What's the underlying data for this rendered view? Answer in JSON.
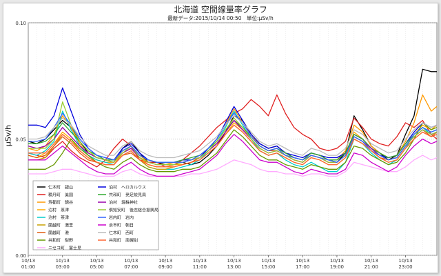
{
  "chart_data": {
    "type": "line",
    "title": "北海道 空間線量率グラフ",
    "subtitle": "最新データ:2015/10/14 00:50　単位:μSv/h",
    "ylabel": "μSv/h",
    "xlabel": "",
    "ylim": [
      0.0,
      0.1
    ],
    "y_ticks": [
      "0.00",
      "0.05",
      "0.10"
    ],
    "x_ticks": [
      [
        "10/13",
        "01:00"
      ],
      [
        "10/13",
        "03:00"
      ],
      [
        "10/13",
        "05:00"
      ],
      [
        "10/13",
        "07:00"
      ],
      [
        "10/13",
        "09:00"
      ],
      [
        "10/13",
        "11:00"
      ],
      [
        "10/13",
        "13:00"
      ],
      [
        "10/13",
        "15:00"
      ],
      [
        "10/13",
        "17:00"
      ],
      [
        "10/13",
        "19:00"
      ],
      [
        "10/13",
        "21:00"
      ],
      [
        "10/13",
        "23:00"
      ]
    ],
    "grid": true,
    "legend_position": "bottom-left",
    "x_hours": [
      1.0,
      1.5,
      2.0,
      2.5,
      3.0,
      3.5,
      4.0,
      4.5,
      5.0,
      5.5,
      6.0,
      6.5,
      7.0,
      7.5,
      8.0,
      8.5,
      9.0,
      9.5,
      10.0,
      10.5,
      11.0,
      11.5,
      12.0,
      12.5,
      13.0,
      13.5,
      14.0,
      14.5,
      15.0,
      15.5,
      16.0,
      16.5,
      17.0,
      17.5,
      18.0,
      18.5,
      19.0,
      19.5,
      20.0,
      20.5,
      21.0,
      21.5,
      22.0,
      22.5,
      23.0,
      23.5,
      24.0,
      24.5,
      24.83
    ],
    "series": [
      {
        "name": "仁木町　銀山",
        "color": "#000000",
        "values": [
          0.049,
          0.048,
          0.05,
          0.054,
          0.058,
          0.055,
          0.049,
          0.044,
          0.042,
          0.041,
          0.04,
          0.046,
          0.049,
          0.044,
          0.04,
          0.04,
          0.039,
          0.04,
          0.04,
          0.039,
          0.04,
          0.043,
          0.047,
          0.053,
          0.06,
          0.058,
          0.052,
          0.048,
          0.046,
          0.047,
          0.044,
          0.042,
          0.041,
          0.044,
          0.043,
          0.041,
          0.04,
          0.044,
          0.06,
          0.054,
          0.047,
          0.044,
          0.041,
          0.043,
          0.052,
          0.06,
          0.08,
          0.079,
          0.079
        ]
      },
      {
        "name": "積丹町　美国",
        "color": "#e02020",
        "values": [
          0.044,
          0.043,
          0.042,
          0.046,
          0.049,
          0.045,
          0.042,
          0.04,
          0.038,
          0.041,
          0.046,
          0.05,
          0.047,
          0.041,
          0.04,
          0.04,
          0.038,
          0.039,
          0.041,
          0.044,
          0.047,
          0.051,
          0.055,
          0.058,
          0.061,
          0.063,
          0.067,
          0.064,
          0.06,
          0.069,
          0.061,
          0.055,
          0.052,
          0.05,
          0.046,
          0.045,
          0.046,
          0.049,
          0.059,
          0.055,
          0.05,
          0.048,
          0.047,
          0.051,
          0.057,
          0.055,
          0.058,
          0.052,
          0.05
        ]
      },
      {
        "name": "寿都町　錦谷",
        "color": "#ff9900",
        "values": [
          0.046,
          0.045,
          0.047,
          0.052,
          0.06,
          0.055,
          0.048,
          0.043,
          0.041,
          0.04,
          0.04,
          0.045,
          0.047,
          0.043,
          0.04,
          0.039,
          0.039,
          0.04,
          0.04,
          0.041,
          0.043,
          0.046,
          0.05,
          0.056,
          0.063,
          0.057,
          0.052,
          0.047,
          0.045,
          0.046,
          0.043,
          0.042,
          0.041,
          0.044,
          0.043,
          0.041,
          0.041,
          0.045,
          0.056,
          0.053,
          0.047,
          0.044,
          0.042,
          0.043,
          0.049,
          0.057,
          0.069,
          0.062,
          0.064
        ]
      },
      {
        "name": "泊村　茶津",
        "color": "#ffaa00",
        "values": [
          0.043,
          0.042,
          0.044,
          0.048,
          0.053,
          0.05,
          0.045,
          0.042,
          0.04,
          0.039,
          0.039,
          0.044,
          0.046,
          0.042,
          0.039,
          0.038,
          0.038,
          0.039,
          0.039,
          0.04,
          0.041,
          0.044,
          0.047,
          0.052,
          0.057,
          0.054,
          0.05,
          0.046,
          0.044,
          0.045,
          0.043,
          0.041,
          0.04,
          0.043,
          0.042,
          0.04,
          0.04,
          0.043,
          0.053,
          0.05,
          0.046,
          0.043,
          0.041,
          0.042,
          0.047,
          0.052,
          0.056,
          0.054,
          0.056
        ]
      },
      {
        "name": "泊村　茶津",
        "color": "#00cccc",
        "values": [
          0.044,
          0.043,
          0.045,
          0.049,
          0.062,
          0.054,
          0.047,
          0.043,
          0.041,
          0.04,
          0.039,
          0.043,
          0.045,
          0.041,
          0.038,
          0.037,
          0.037,
          0.037,
          0.038,
          0.039,
          0.041,
          0.045,
          0.049,
          0.055,
          0.062,
          0.056,
          0.05,
          0.045,
          0.043,
          0.044,
          0.041,
          0.039,
          0.038,
          0.04,
          0.038,
          0.036,
          0.036,
          0.04,
          0.05,
          0.048,
          0.044,
          0.041,
          0.039,
          0.041,
          0.046,
          0.052,
          0.055,
          0.052,
          0.053
        ]
      },
      {
        "name": "蘭越町　湯里",
        "color": "#c8a000",
        "values": [
          0.041,
          0.041,
          0.042,
          0.047,
          0.052,
          0.049,
          0.045,
          0.042,
          0.04,
          0.039,
          0.039,
          0.043,
          0.045,
          0.041,
          0.038,
          0.037,
          0.037,
          0.038,
          0.039,
          0.04,
          0.041,
          0.044,
          0.047,
          0.052,
          0.056,
          0.053,
          0.049,
          0.045,
          0.043,
          0.044,
          0.042,
          0.04,
          0.039,
          0.042,
          0.041,
          0.039,
          0.039,
          0.042,
          0.05,
          0.048,
          0.045,
          0.042,
          0.04,
          0.041,
          0.046,
          0.05,
          0.053,
          0.051,
          0.052
        ]
      },
      {
        "name": "蘭越町　港",
        "color": "#e05a10",
        "values": [
          0.043,
          0.042,
          0.043,
          0.047,
          0.051,
          0.048,
          0.044,
          0.041,
          0.04,
          0.039,
          0.039,
          0.043,
          0.044,
          0.041,
          0.039,
          0.038,
          0.038,
          0.038,
          0.039,
          0.04,
          0.042,
          0.045,
          0.048,
          0.053,
          0.058,
          0.055,
          0.051,
          0.047,
          0.045,
          0.045,
          0.043,
          0.041,
          0.04,
          0.043,
          0.042,
          0.04,
          0.04,
          0.043,
          0.051,
          0.049,
          0.045,
          0.042,
          0.041,
          0.042,
          0.047,
          0.051,
          0.054,
          0.051,
          0.053
        ]
      },
      {
        "name": "共和町　梨野",
        "color": "#669900",
        "values": [
          0.037,
          0.037,
          0.037,
          0.039,
          0.044,
          0.05,
          0.046,
          0.043,
          0.04,
          0.038,
          0.037,
          0.04,
          0.042,
          0.039,
          0.037,
          0.036,
          0.036,
          0.036,
          0.037,
          0.037,
          0.038,
          0.041,
          0.044,
          0.049,
          0.054,
          0.051,
          0.047,
          0.043,
          0.041,
          0.041,
          0.039,
          0.038,
          0.037,
          0.039,
          0.038,
          0.037,
          0.037,
          0.04,
          0.047,
          0.046,
          0.043,
          0.041,
          0.039,
          0.04,
          0.044,
          0.05,
          0.057,
          0.054,
          0.055
        ]
      },
      {
        "name": "ニセコ町　富士見",
        "color": "#ffaaff",
        "values": [
          0.035,
          0.035,
          0.035,
          0.036,
          0.037,
          0.037,
          0.036,
          0.035,
          0.034,
          0.034,
          0.034,
          0.036,
          0.037,
          0.035,
          0.034,
          0.034,
          0.034,
          0.034,
          0.034,
          0.035,
          0.035,
          0.036,
          0.037,
          0.039,
          0.041,
          0.04,
          0.039,
          0.037,
          0.036,
          0.036,
          0.035,
          0.035,
          0.034,
          0.035,
          0.035,
          0.034,
          0.034,
          0.036,
          0.04,
          0.039,
          0.038,
          0.037,
          0.036,
          0.036,
          0.038,
          0.041,
          0.043,
          0.041,
          0.042
        ]
      },
      {
        "name": "泊村　ヘロカルウス",
        "color": "#0000dd",
        "values": [
          0.056,
          0.056,
          0.055,
          0.06,
          0.072,
          0.062,
          0.052,
          0.046,
          0.043,
          0.042,
          0.041,
          0.046,
          0.048,
          0.044,
          0.041,
          0.04,
          0.04,
          0.04,
          0.041,
          0.041,
          0.042,
          0.046,
          0.05,
          0.057,
          0.064,
          0.058,
          0.052,
          0.048,
          0.046,
          0.047,
          0.044,
          0.043,
          0.042,
          0.044,
          0.043,
          0.042,
          0.042,
          0.044,
          0.052,
          0.05,
          0.046,
          0.043,
          0.042,
          0.043,
          0.048,
          0.053,
          0.057,
          0.055,
          0.056
        ]
      },
      {
        "name": "共和町　発足蛟見局",
        "color": "#33aa33",
        "values": [
          0.048,
          0.048,
          0.049,
          0.052,
          0.057,
          0.053,
          0.049,
          0.045,
          0.043,
          0.041,
          0.041,
          0.045,
          0.047,
          0.043,
          0.041,
          0.04,
          0.04,
          0.04,
          0.041,
          0.042,
          0.043,
          0.046,
          0.049,
          0.054,
          0.058,
          0.055,
          0.051,
          0.047,
          0.045,
          0.046,
          0.044,
          0.042,
          0.041,
          0.044,
          0.043,
          0.041,
          0.041,
          0.044,
          0.052,
          0.05,
          0.046,
          0.044,
          0.042,
          0.043,
          0.048,
          0.052,
          0.055,
          0.053,
          0.054
        ]
      },
      {
        "name": "泊村　堀株神社",
        "color": "#9900aa",
        "values": [
          0.047,
          0.046,
          0.047,
          0.05,
          0.055,
          0.051,
          0.047,
          0.044,
          0.042,
          0.041,
          0.04,
          0.044,
          0.046,
          0.042,
          0.04,
          0.039,
          0.039,
          0.039,
          0.04,
          0.041,
          0.042,
          0.045,
          0.048,
          0.053,
          0.058,
          0.054,
          0.05,
          0.046,
          0.044,
          0.045,
          0.043,
          0.041,
          0.04,
          0.043,
          0.042,
          0.04,
          0.04,
          0.043,
          0.051,
          0.049,
          0.046,
          0.043,
          0.041,
          0.042,
          0.047,
          0.051,
          0.054,
          0.052,
          0.053
        ]
      },
      {
        "name": "俱知安町　後志総合振興局",
        "color": "#99cc33",
        "values": [
          0.046,
          0.046,
          0.046,
          0.05,
          0.066,
          0.056,
          0.049,
          0.045,
          0.042,
          0.041,
          0.04,
          0.044,
          0.047,
          0.042,
          0.04,
          0.039,
          0.039,
          0.039,
          0.04,
          0.041,
          0.042,
          0.045,
          0.049,
          0.054,
          0.059,
          0.055,
          0.05,
          0.046,
          0.044,
          0.045,
          0.043,
          0.041,
          0.04,
          0.043,
          0.042,
          0.04,
          0.04,
          0.043,
          0.051,
          0.049,
          0.045,
          0.043,
          0.041,
          0.042,
          0.047,
          0.051,
          0.054,
          0.052,
          0.053
        ]
      },
      {
        "name": "岩内町　岩内",
        "color": "#3366ff",
        "values": [
          0.049,
          0.049,
          0.05,
          0.055,
          0.061,
          0.056,
          0.05,
          0.046,
          0.043,
          0.042,
          0.041,
          0.045,
          0.047,
          0.043,
          0.041,
          0.04,
          0.04,
          0.04,
          0.04,
          0.041,
          0.043,
          0.046,
          0.05,
          0.056,
          0.061,
          0.057,
          0.051,
          0.047,
          0.045,
          0.046,
          0.043,
          0.042,
          0.041,
          0.043,
          0.042,
          0.041,
          0.04,
          0.043,
          0.051,
          0.049,
          0.045,
          0.043,
          0.041,
          0.042,
          0.047,
          0.052,
          0.055,
          0.053,
          0.054
        ]
      },
      {
        "name": "余市町　朝日",
        "color": "#cc00cc",
        "values": [
          0.041,
          0.041,
          0.041,
          0.044,
          0.047,
          0.044,
          0.041,
          0.038,
          0.036,
          0.035,
          0.035,
          0.038,
          0.04,
          0.037,
          0.035,
          0.034,
          0.034,
          0.034,
          0.035,
          0.036,
          0.037,
          0.04,
          0.043,
          0.048,
          0.052,
          0.049,
          0.045,
          0.041,
          0.04,
          0.04,
          0.038,
          0.036,
          0.035,
          0.037,
          0.036,
          0.035,
          0.035,
          0.037,
          0.044,
          0.043,
          0.04,
          0.038,
          0.036,
          0.038,
          0.043,
          0.047,
          0.05,
          0.048,
          0.049
        ]
      },
      {
        "name": "仁木町　西町",
        "color": "#bbbbbb",
        "values": [
          0.05,
          0.05,
          0.051,
          0.055,
          0.059,
          0.056,
          0.051,
          0.047,
          0.045,
          0.043,
          0.043,
          0.047,
          0.049,
          0.045,
          0.043,
          0.042,
          0.042,
          0.042,
          0.043,
          0.044,
          0.045,
          0.048,
          0.051,
          0.056,
          0.06,
          0.057,
          0.053,
          0.049,
          0.047,
          0.048,
          0.046,
          0.044,
          0.043,
          0.046,
          0.045,
          0.043,
          0.043,
          0.046,
          0.054,
          0.052,
          0.048,
          0.046,
          0.044,
          0.045,
          0.05,
          0.054,
          0.057,
          0.055,
          0.056
        ]
      },
      {
        "name": "共和町　南幌別",
        "color": "#ff6633",
        "values": [
          0.044,
          0.044,
          0.044,
          0.048,
          0.052,
          0.049,
          0.045,
          0.042,
          0.04,
          0.039,
          0.039,
          0.043,
          0.045,
          0.041,
          0.039,
          0.038,
          0.038,
          0.038,
          0.039,
          0.04,
          0.041,
          0.044,
          0.047,
          0.052,
          0.056,
          0.053,
          0.049,
          0.045,
          0.043,
          0.044,
          0.042,
          0.04,
          0.039,
          0.042,
          0.041,
          0.039,
          0.039,
          0.042,
          0.05,
          0.048,
          0.045,
          0.042,
          0.04,
          0.041,
          0.046,
          0.05,
          0.053,
          0.051,
          0.052
        ]
      }
    ]
  }
}
